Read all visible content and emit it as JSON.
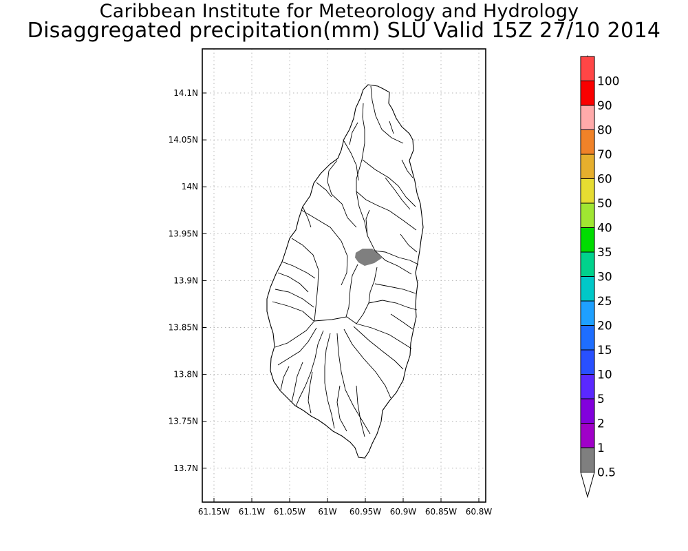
{
  "title": {
    "line1": "Caribbean Institute for Meteorology and Hydrology",
    "line2": "Disaggregated precipitation(mm) SLU Valid 15Z 27/10 2014"
  },
  "map": {
    "x_ticks": [
      {
        "value": -61.15,
        "label": "61.15W"
      },
      {
        "value": -61.1,
        "label": "61.1W"
      },
      {
        "value": -61.05,
        "label": "61.05W"
      },
      {
        "value": -61.0,
        "label": "61W"
      },
      {
        "value": -60.95,
        "label": "60.95W"
      },
      {
        "value": -60.9,
        "label": "60.9W"
      },
      {
        "value": -60.85,
        "label": "60.85W"
      },
      {
        "value": -60.8,
        "label": "60.8W"
      }
    ],
    "y_ticks": [
      {
        "value": 14.1,
        "label": "14.1N"
      },
      {
        "value": 14.05,
        "label": "14.05N"
      },
      {
        "value": 14.0,
        "label": "14N"
      },
      {
        "value": 13.95,
        "label": "13.95N"
      },
      {
        "value": 13.9,
        "label": "13.9N"
      },
      {
        "value": 13.85,
        "label": "13.85N"
      },
      {
        "value": 13.8,
        "label": "13.8N"
      },
      {
        "value": 13.75,
        "label": "13.75N"
      },
      {
        "value": 13.7,
        "label": "13.7N"
      }
    ],
    "grid": "dotted",
    "precip_area": {
      "value_range": "0.5-1",
      "color": "#7f7f7f",
      "location": "central St. Lucia, ~60.94W 13.925N"
    }
  },
  "colorbar": {
    "levels": [
      "0.5",
      "1",
      "2",
      "5",
      "10",
      "15",
      "20",
      "25",
      "30",
      "35",
      "40",
      "50",
      "60",
      "70",
      "80",
      "90",
      "100"
    ],
    "colors": [
      "#7f7f7f",
      "#a000c8",
      "#8200dc",
      "#5a28ff",
      "#2850ff",
      "#1e6eff",
      "#1ea0ff",
      "#00c8c8",
      "#00d28c",
      "#00dc00",
      "#a0e632",
      "#e6dc32",
      "#e6af2d",
      "#f08228",
      "#ffaaaa",
      "#fa0000",
      "#ff4646"
    ],
    "under_color": "#ffffff",
    "over_color": "#e0148c"
  }
}
